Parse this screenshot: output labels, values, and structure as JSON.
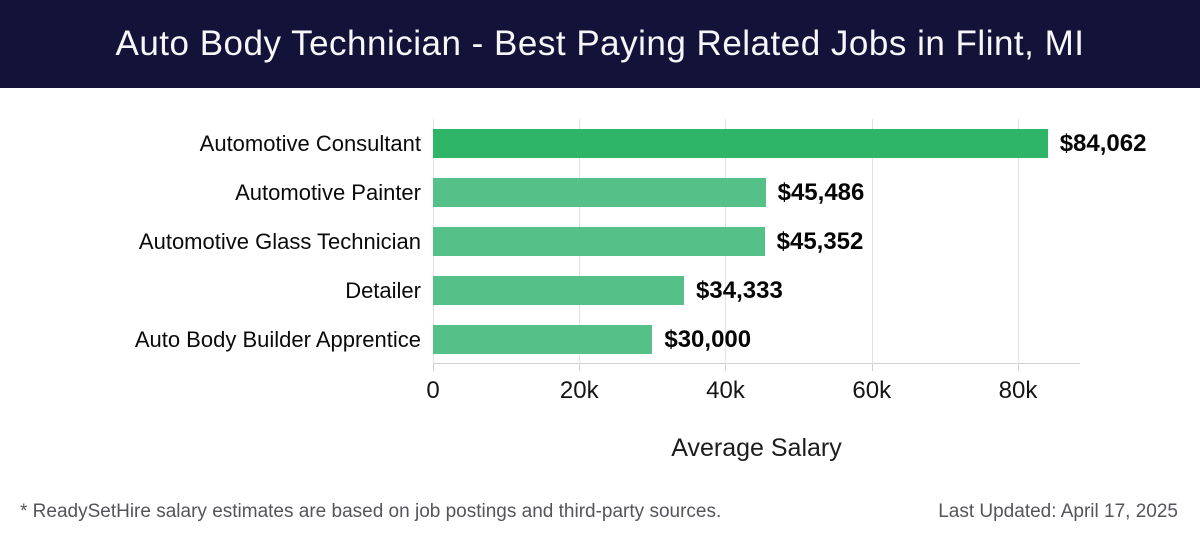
{
  "header": {
    "title": "Auto Body Technician - Best Paying Related Jobs in Flint, MI",
    "bg_color": "#131339",
    "text_color": "#f7f7fb"
  },
  "chart_data": {
    "type": "bar",
    "orientation": "horizontal",
    "title": "Auto Body Technician - Best Paying Related Jobs in Flint, MI",
    "categories": [
      "Automotive Consultant",
      "Automotive Painter",
      "Automotive Glass Technician",
      "Detailer",
      "Auto Body Builder Apprentice"
    ],
    "values": [
      84062,
      45486,
      45352,
      34333,
      30000
    ],
    "value_labels": [
      "$84,062",
      "$45,486",
      "$45,352",
      "$34,333",
      "$30,000"
    ],
    "bar_colors": [
      "#2eb567",
      "#55c189",
      "#55c189",
      "#55c189",
      "#55c189"
    ],
    "xlabel": "Average Salary",
    "ylabel": "",
    "x_ticks": [
      "0",
      "20k",
      "40k",
      "60k",
      "80k"
    ],
    "x_tick_values": [
      0,
      20000,
      40000,
      60000,
      80000
    ],
    "xlim": [
      0,
      88480
    ],
    "grid": true,
    "gridline_color": "#e2e2e2",
    "legend": false
  },
  "footer": {
    "note": "* ReadySetHire salary estimates are based on job postings and third-party sources.",
    "last_updated": "Last Updated: April 17, 2025"
  }
}
